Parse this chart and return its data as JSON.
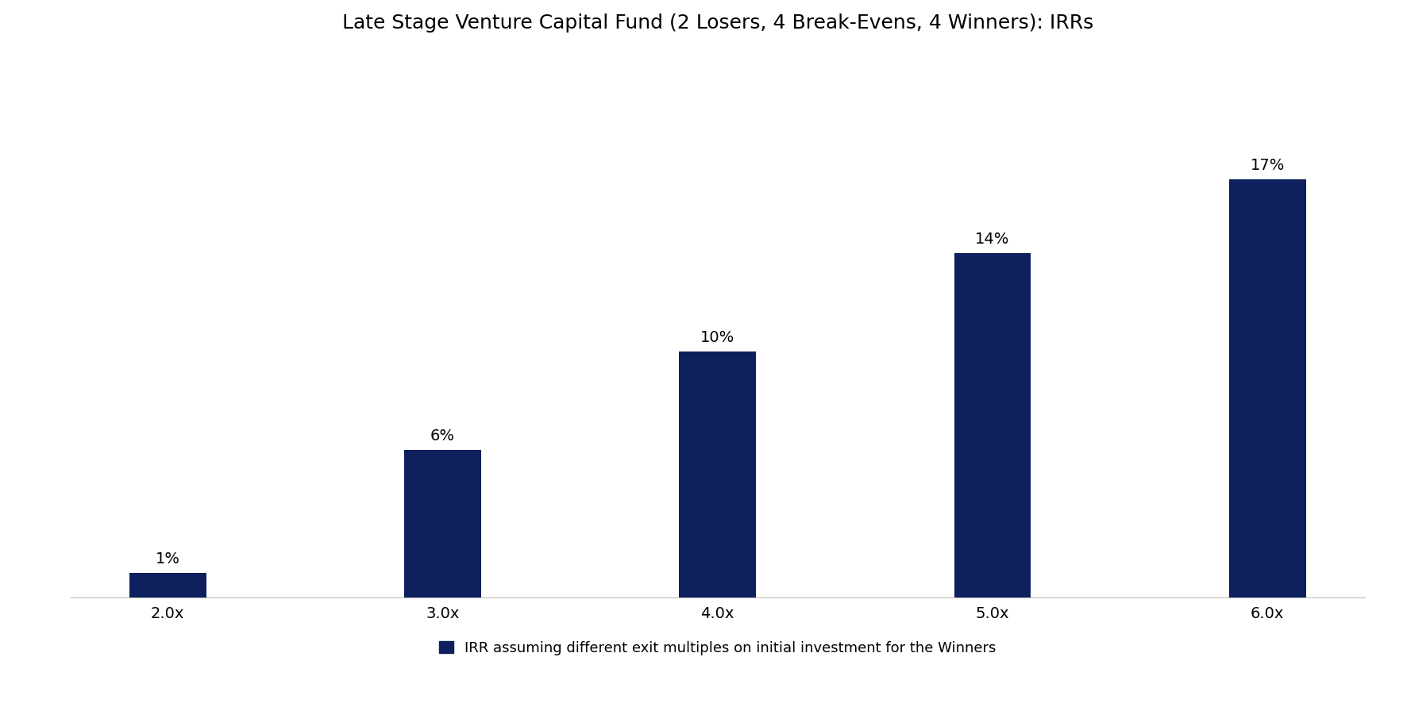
{
  "title": "Late Stage Venture Capital Fund (2 Losers, 4 Break-Evens, 4 Winners): IRRs",
  "categories": [
    "2.0x",
    "3.0x",
    "4.0x",
    "5.0x",
    "6.0x"
  ],
  "values": [
    1,
    6,
    10,
    14,
    17
  ],
  "labels": [
    "1%",
    "6%",
    "10%",
    "14%",
    "17%"
  ],
  "bar_color": "#0d1f5c",
  "background_color": "#ffffff",
  "ylim": [
    0,
    22
  ],
  "legend_text": "IRR assuming different exit multiples on initial investment for the Winners",
  "legend_color": "#0d1f5c",
  "title_fontsize": 18,
  "label_fontsize": 14,
  "tick_fontsize": 14,
  "legend_fontsize": 13,
  "bar_width": 0.28
}
